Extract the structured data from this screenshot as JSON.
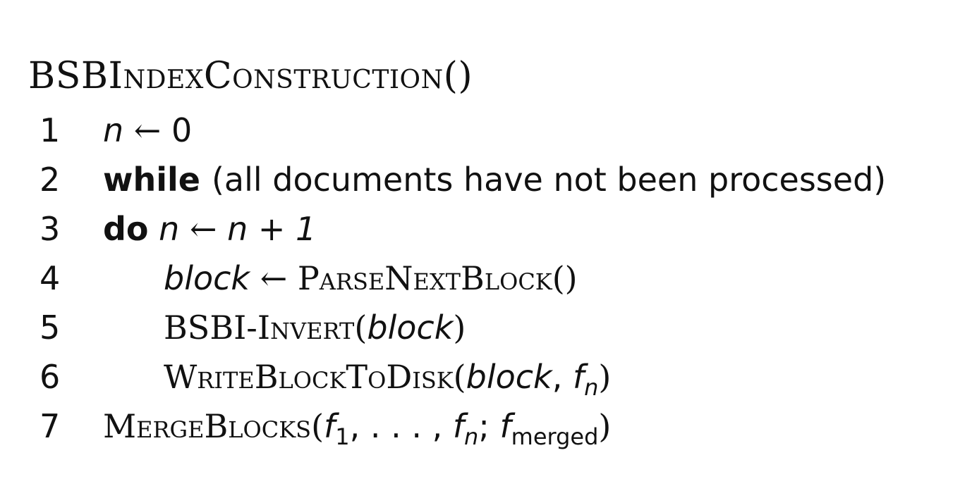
{
  "algorithm": {
    "title": "BSBIndexConstruction()",
    "lines": [
      {
        "number": "1",
        "var_n": "n",
        "arrow": "←",
        "zero": "0"
      },
      {
        "number": "2",
        "keyword": "while",
        "condition": "(all documents have not been processed)"
      },
      {
        "number": "3",
        "keyword": "do",
        "var_n": "n",
        "arrow": "←",
        "expr": "n + 1"
      },
      {
        "number": "4",
        "var_block": "block",
        "arrow": "←",
        "call": "ParseNextBlock()"
      },
      {
        "number": "5",
        "proc": "BSBI-Invert",
        "arg": "block"
      },
      {
        "number": "6",
        "proc": "WriteBlockToDisk",
        "arg": "block",
        "f": "f",
        "f_sub": "n"
      },
      {
        "number": "7",
        "proc": "MergeBlocks",
        "f1": "f",
        "f1_sub": "1",
        "ellipsis": ", . . . ,",
        "fn": "f",
        "fn_sub": "n",
        "fm": "f",
        "fm_sub": "merged"
      }
    ]
  }
}
